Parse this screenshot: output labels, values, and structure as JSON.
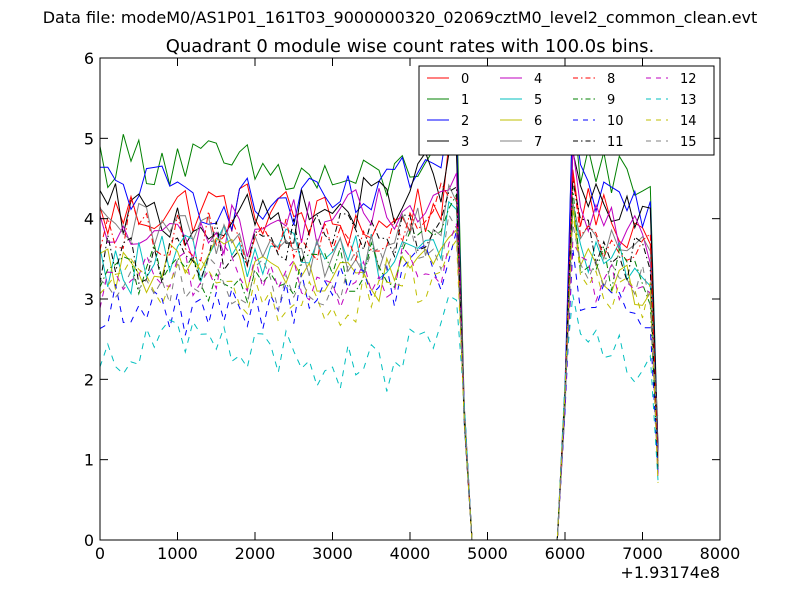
{
  "figure": {
    "suptitle": "Data file: modeM0/AS1P01_161T03_9000000320_02069cztM0_level2_common_clean.evt",
    "title": "Quadrant 0 module wise count rates with 100.0s bins."
  },
  "chart_data": {
    "type": "line",
    "title": "Quadrant 0 module wise count rates with 100.0s bins.",
    "xlabel": "",
    "ylabel": "",
    "xlim": [
      0,
      8000
    ],
    "ylim": [
      0,
      6
    ],
    "x_offset_label": "+1.93174e8",
    "xticks": [
      0,
      1000,
      2000,
      3000,
      4000,
      5000,
      6000,
      7000,
      8000
    ],
    "yticks": [
      0,
      1,
      2,
      3,
      4,
      5,
      6
    ],
    "grid": false,
    "legend_position": "top-right",
    "segments": [
      {
        "x_start": 0,
        "x_end": 4600,
        "step": 100
      },
      {
        "x_start": 4600,
        "x_end": 5900,
        "step": 100,
        "note": "gap"
      },
      {
        "x_start": 6000,
        "x_end": 7200,
        "step": 100
      }
    ],
    "series": [
      {
        "name": "0",
        "color": "#ff0000",
        "dash": "solid",
        "level": 4.0
      },
      {
        "name": "1",
        "color": "#008000",
        "dash": "solid",
        "level": 4.6
      },
      {
        "name": "2",
        "color": "#0000ff",
        "dash": "solid",
        "level": 4.3
      },
      {
        "name": "3",
        "color": "#000000",
        "dash": "solid",
        "level": 4.1
      },
      {
        "name": "4",
        "color": "#bf00bf",
        "dash": "solid",
        "level": 3.9
      },
      {
        "name": "5",
        "color": "#00bfbf",
        "dash": "solid",
        "level": 3.5
      },
      {
        "name": "6",
        "color": "#bfbf00",
        "dash": "solid",
        "level": 3.3
      },
      {
        "name": "7",
        "color": "#808080",
        "dash": "solid",
        "level": 3.7
      },
      {
        "name": "8",
        "color": "#ff0000",
        "dash": "dashdot",
        "level": 3.8
      },
      {
        "name": "9",
        "color": "#008000",
        "dash": "dashdot",
        "level": 3.4
      },
      {
        "name": "10",
        "color": "#0000ff",
        "dash": "dashed",
        "level": 3.0
      },
      {
        "name": "11",
        "color": "#000000",
        "dash": "dashdot",
        "level": 3.6
      },
      {
        "name": "12",
        "color": "#bf00bf",
        "dash": "dashed",
        "level": 3.2
      },
      {
        "name": "13",
        "color": "#00bfbf",
        "dash": "dashed",
        "level": 2.3
      },
      {
        "name": "14",
        "color": "#bfbf00",
        "dash": "dashed",
        "level": 3.1
      },
      {
        "name": "15",
        "color": "#808080",
        "dash": "dashed",
        "level": 3.3
      }
    ]
  }
}
